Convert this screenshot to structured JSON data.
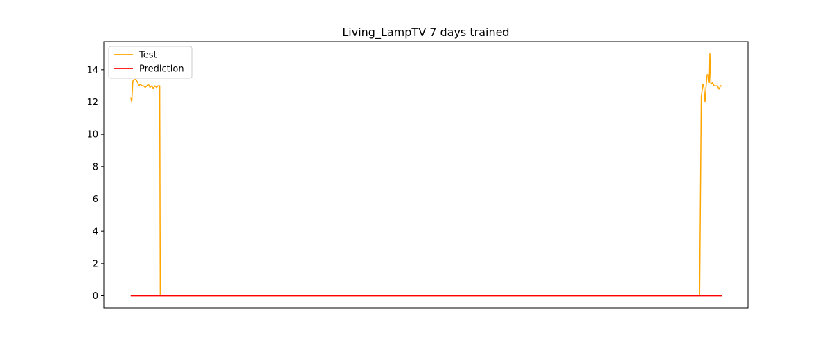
{
  "chart_data": {
    "type": "line",
    "title": "Living_LampTV 7 days trained",
    "xlabel": "",
    "ylabel": "",
    "x_ticks_shown": false,
    "xlim": [
      -50,
      1150
    ],
    "ylim": [
      -0.75,
      15.75
    ],
    "yticks": [
      0,
      2,
      4,
      6,
      8,
      10,
      12,
      14
    ],
    "grid": false,
    "legend_position": "top-left",
    "series": [
      {
        "name": "Test",
        "color": "#ffa500",
        "points": [
          [
            0,
            12.3
          ],
          [
            2,
            12.0
          ],
          [
            4,
            13.3
          ],
          [
            7,
            13.4
          ],
          [
            10,
            13.4
          ],
          [
            13,
            13.2
          ],
          [
            15,
            13.0
          ],
          [
            18,
            13.1
          ],
          [
            21,
            13.0
          ],
          [
            24,
            13.0
          ],
          [
            27,
            12.9
          ],
          [
            30,
            13.0
          ],
          [
            33,
            13.1
          ],
          [
            36,
            12.9
          ],
          [
            39,
            13.0
          ],
          [
            42,
            12.85
          ],
          [
            45,
            13.0
          ],
          [
            48,
            12.9
          ],
          [
            51,
            13.0
          ],
          [
            54,
            13.0
          ],
          [
            55,
            0
          ],
          [
            1060,
            0
          ],
          [
            1063,
            12.3
          ],
          [
            1066,
            13.1
          ],
          [
            1068,
            12.9
          ],
          [
            1070,
            12.0
          ],
          [
            1072,
            13.0
          ],
          [
            1074,
            13.7
          ],
          [
            1076,
            13.7
          ],
          [
            1078,
            13.2
          ],
          [
            1079,
            15.0
          ],
          [
            1081,
            13.1
          ],
          [
            1084,
            13.2
          ],
          [
            1087,
            13.0
          ],
          [
            1090,
            13.0
          ],
          [
            1093,
            13.0
          ],
          [
            1096,
            12.8
          ],
          [
            1099,
            13.0
          ],
          [
            1102,
            13.0
          ]
        ]
      },
      {
        "name": "Prediction",
        "color": "#ff0000",
        "points": [
          [
            0,
            0
          ],
          [
            1102,
            0
          ]
        ]
      }
    ]
  }
}
